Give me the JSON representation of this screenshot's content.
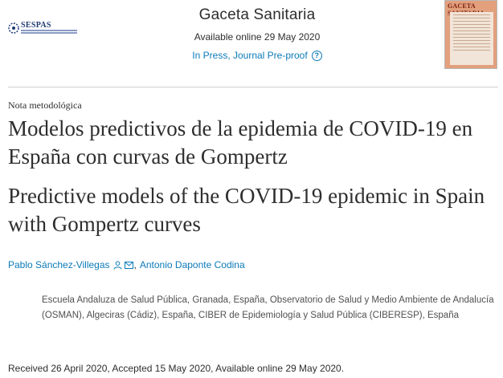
{
  "header": {
    "publisher_logo_text": "SESPAS",
    "journal_title": "Gaceta Sanitaria",
    "available_online": "Available online 29 May 2020",
    "status": "In Press, Journal Pre-proof",
    "cover_title": "GACETA SANITARIA",
    "colors": {
      "link": "#0c7ab8",
      "cover": "#e2a07d"
    }
  },
  "article": {
    "type": "Nota metodológica",
    "title_es": "Modelos predictivos de la epidemia de COVID-19 en España con curvas de Gompertz",
    "title_en": "Predictive models of the COVID-19 epidemic in Spain with Gompertz curves",
    "authors": [
      {
        "name": "Pablo Sánchez-Villegas",
        "icons": [
          "person-icon",
          "mail-icon"
        ]
      },
      {
        "name": "Antonio Daponte Codina",
        "icons": []
      }
    ],
    "author_separator": ",",
    "affiliation": "Escuela Andaluza de Salud Pública, Granada, España, Observatorio de Salud y Medio Ambiente de Andalucía (OSMAN), Algeciras (Cádiz), España, CIBER de Epidemiología y Salud Pública (CIBERESP), España",
    "received": "Received 26 April 2020, Accepted 15 May 2020, Available online 29 May 2020."
  }
}
